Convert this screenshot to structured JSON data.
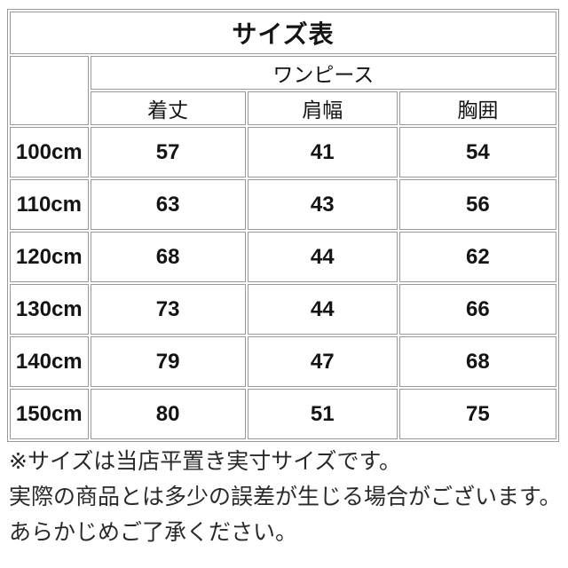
{
  "table": {
    "title": "サイズ表",
    "group_header": "ワンピース",
    "columns": [
      "着丈",
      "肩幅",
      "胸囲"
    ],
    "rows": [
      {
        "size": "100cm",
        "values": [
          "57",
          "41",
          "54"
        ]
      },
      {
        "size": "110cm",
        "values": [
          "63",
          "43",
          "56"
        ]
      },
      {
        "size": "120cm",
        "values": [
          "68",
          "44",
          "62"
        ]
      },
      {
        "size": "130cm",
        "values": [
          "73",
          "44",
          "66"
        ]
      },
      {
        "size": "140cm",
        "values": [
          "79",
          "47",
          "68"
        ]
      },
      {
        "size": "150cm",
        "values": [
          "80",
          "51",
          "75"
        ]
      }
    ]
  },
  "notes": [
    "※サイズは当店平置き実寸サイズです。",
    "実際の商品とは多少の誤差が生じる場合がございます。",
    "あらかじめご了承ください。"
  ],
  "colors": {
    "border": "#999999",
    "text": "#141414",
    "note_text": "#2a2a2a",
    "background": "#ffffff"
  }
}
